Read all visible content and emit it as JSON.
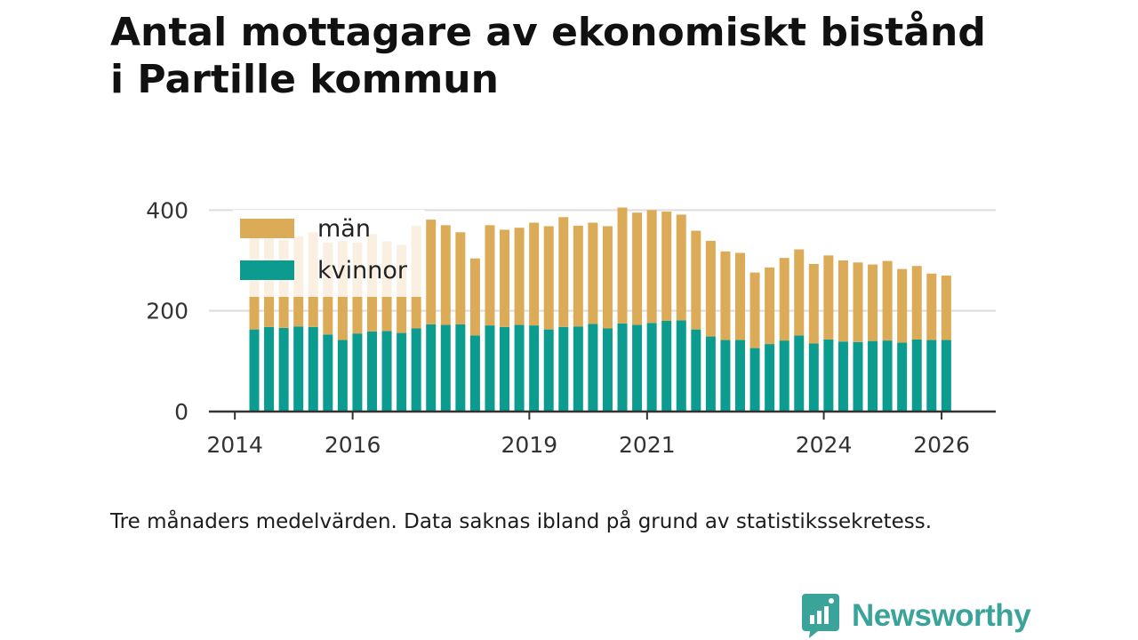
{
  "title": {
    "line1": "Antal mottagare av ekonomiskt bistånd",
    "line2": "i Partille kommun"
  },
  "caption": "Tre månaders medelvärden. Data saknas ibland på grund av statistikssekretess.",
  "brand": {
    "name": "Newsworthy",
    "icon": "newsworthy-chart-icon",
    "color": "#3aa39a"
  },
  "colors": {
    "man": "#dcab58",
    "kvinnor": "#0b9b8f",
    "axis": "#333333",
    "grid": "#dddddd"
  },
  "chart_data": {
    "type": "bar",
    "stacked": true,
    "title": "Antal mottagare av ekonomiskt bistånd i Partille kommun",
    "xlabel": "",
    "ylabel": "",
    "ylim": [
      0,
      420
    ],
    "yticks": [
      0,
      200,
      400
    ],
    "x_ticks": [
      {
        "label": "2014",
        "x": 2014.0
      },
      {
        "label": "2016",
        "x": 2016.0
      },
      {
        "label": "2019",
        "x": 2019.0
      },
      {
        "label": "2021",
        "x": 2021.0
      },
      {
        "label": "2024",
        "x": 2024.0
      },
      {
        "label": "2026",
        "x": 2026.0
      }
    ],
    "x_range": [
      2013.56,
      2026.92
    ],
    "legend": {
      "position": "top-left",
      "entries": [
        "män",
        "kvinnor"
      ]
    },
    "period_labels": [
      "2014-Q3",
      "2014-Q4",
      "2015-Q1",
      "2015-Q2",
      "2015-Q3",
      "2015-Q4",
      "2016-Q1",
      "2016-Q2",
      "2016-Q3",
      "2016-Q4",
      "2017-Q1",
      "2017-Q2",
      "2017-Q3",
      "2017-Q4",
      "2018-Q1",
      "2018-Q2",
      "2018-Q3",
      "2018-Q4",
      "2019-Q1",
      "2019-Q2",
      "2019-Q3",
      "2019-Q4",
      "2020-Q1",
      "2020-Q2",
      "2020-Q3",
      "2020-Q4",
      "2021-Q1",
      "2021-Q2",
      "2021-Q3",
      "2021-Q4",
      "2022-Q1",
      "2022-Q2",
      "2022-Q3",
      "2022-Q4",
      "2023-Q1",
      "2023-Q2",
      "2023-Q3",
      "2023-Q4",
      "2024-Q1",
      "2024-Q2",
      "2024-Q3",
      "2024-Q4",
      "2025-Q1",
      "2025-Q2",
      "2025-Q3",
      "2025-Q4"
    ],
    "x": [
      2014.33,
      2014.58,
      2014.83,
      2015.08,
      2015.33,
      2015.58,
      2015.83,
      2016.08,
      2016.33,
      2016.58,
      2016.83,
      2017.08,
      2017.33,
      2017.58,
      2017.83,
      2018.08,
      2018.33,
      2018.58,
      2018.83,
      2019.08,
      2019.33,
      2019.58,
      2019.83,
      2020.08,
      2020.33,
      2020.58,
      2020.83,
      2021.08,
      2021.33,
      2021.58,
      2021.83,
      2022.08,
      2022.33,
      2022.58,
      2022.83,
      2023.08,
      2023.33,
      2023.58,
      2023.83,
      2024.08,
      2024.33,
      2024.58,
      2024.83,
      2025.08,
      2025.33,
      2025.58
    ],
    "series": [
      {
        "name": "kvinnor",
        "values": [
          163,
          168,
          166,
          169,
          168,
          153,
          142,
          155,
          159,
          160,
          156,
          165,
          173,
          172,
          173,
          151,
          171,
          168,
          172,
          171,
          163,
          168,
          169,
          174,
          165,
          175,
          172,
          176,
          180,
          181,
          163,
          149,
          142,
          142,
          126,
          134,
          141,
          151,
          135,
          143,
          139,
          138,
          140,
          141,
          137,
          143
        ]
      },
      {
        "name": "män",
        "values": [
          190,
          179,
          175,
          179,
          188,
          182,
          197,
          180,
          193,
          178,
          175,
          204,
          208,
          198,
          183,
          153,
          199,
          193,
          193,
          204,
          205,
          218,
          200,
          201,
          203,
          230,
          223,
          224,
          217,
          210,
          196,
          190,
          176,
          173,
          150,
          152,
          164,
          171,
          158,
          167,
          161,
          158,
          152,
          158,
          146,
          146
        ]
      }
    ],
    "totals": [
      353,
      347,
      341,
      348,
      356,
      335,
      339,
      335,
      352,
      338,
      331,
      369,
      381,
      370,
      356,
      304,
      370,
      361,
      365,
      375,
      368,
      386,
      369,
      375,
      368,
      405,
      395,
      400,
      397,
      391,
      359,
      339,
      318,
      315,
      276,
      286,
      305,
      322,
      293,
      310,
      300,
      296,
      292,
      299,
      283,
      289
    ],
    "extra_points": [
      {
        "x": 2025.83,
        "kvinnor": 142,
        "män": 132,
        "total": 274
      },
      {
        "x": 2026.08,
        "kvinnor": 142,
        "män": 128,
        "total": 270
      }
    ]
  }
}
